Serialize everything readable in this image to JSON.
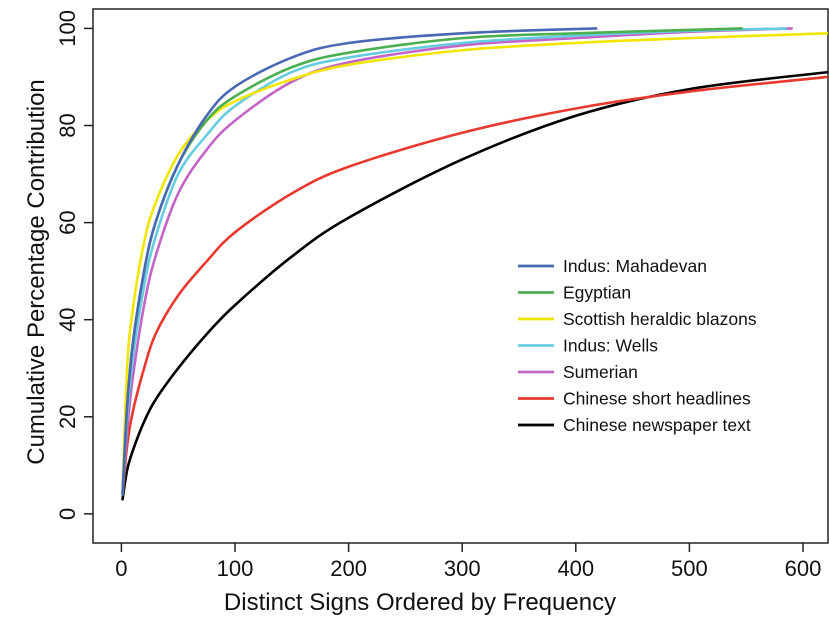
{
  "chart_data": {
    "type": "line",
    "xlabel": "Distinct Signs Ordered by Frequency",
    "ylabel": "Cumulative Percentage Contribution",
    "xlim": [
      -25,
      622
    ],
    "ylim": [
      -6,
      104
    ],
    "xticks": [
      0,
      100,
      200,
      300,
      400,
      500,
      600
    ],
    "yticks": [
      0,
      20,
      40,
      60,
      80,
      100
    ],
    "grid": false,
    "legend_position": "center-right",
    "series": [
      {
        "name": "Indus: Mahadevan",
        "color": "#4a69b5",
        "x": [
          1,
          5,
          10,
          20,
          30,
          50,
          75,
          100,
          150,
          200,
          300,
          418
        ],
        "y": [
          4,
          22,
          35,
          50,
          60,
          72,
          82,
          88,
          94,
          97,
          99,
          100
        ]
      },
      {
        "name": "Egyptian",
        "color": "#4caf50",
        "x": [
          1,
          5,
          10,
          20,
          30,
          50,
          75,
          100,
          150,
          200,
          300,
          400,
          546
        ],
        "y": [
          4,
          22,
          35,
          50,
          60,
          72,
          81,
          86,
          92,
          95,
          98,
          99,
          100
        ]
      },
      {
        "name": "Scottish heraldic blazons",
        "color": "#f2e600",
        "x": [
          1,
          5,
          10,
          20,
          30,
          50,
          75,
          100,
          150,
          200,
          300,
          400,
          500,
          622
        ],
        "y": [
          4,
          30,
          42,
          56,
          64,
          74,
          81,
          85,
          89.5,
          92.5,
          95.5,
          97,
          98,
          99
        ]
      },
      {
        "name": "Indus: Wells",
        "color": "#66cce0",
        "x": [
          1,
          5,
          10,
          20,
          30,
          50,
          75,
          100,
          150,
          200,
          300,
          400,
          500,
          585
        ],
        "y": [
          4,
          20,
          32,
          47,
          57,
          70,
          78,
          84,
          91,
          94,
          97,
          98.5,
          99.5,
          100
        ]
      },
      {
        "name": "Sumerian",
        "color": "#c364c6",
        "x": [
          1,
          5,
          10,
          20,
          30,
          50,
          75,
          100,
          150,
          200,
          300,
          400,
          500,
          590
        ],
        "y": [
          4,
          17,
          28,
          43,
          53,
          66,
          75,
          81,
          89,
          93,
          96.5,
          98,
          99.3,
          100
        ]
      },
      {
        "name": "Chinese short headlines",
        "color": "#e8392f",
        "x": [
          1,
          5,
          10,
          20,
          30,
          50,
          75,
          100,
          150,
          200,
          300,
          400,
          500,
          622
        ],
        "y": [
          4,
          14,
          21,
          30,
          37,
          45,
          52,
          58,
          66,
          71.5,
          78.5,
          83.5,
          87,
          90
        ]
      },
      {
        "name": "Chinese newspaper text",
        "color": "#000000",
        "x": [
          1,
          5,
          10,
          20,
          30,
          50,
          75,
          100,
          150,
          200,
          300,
          400,
          500,
          622
        ],
        "y": [
          3,
          9,
          13,
          19,
          23.5,
          30,
          37,
          43,
          53,
          61,
          73,
          82,
          87.5,
          91
        ]
      }
    ]
  }
}
